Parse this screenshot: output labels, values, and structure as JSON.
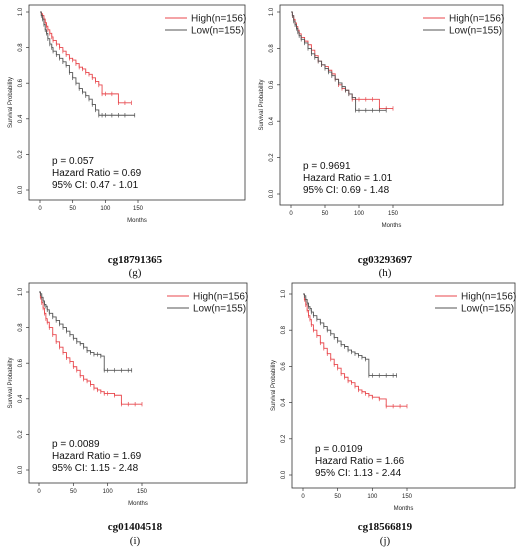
{
  "colors": {
    "high": "#e8474c",
    "low": "#555555",
    "frame": "#333333"
  },
  "chart_data": [
    {
      "type": "line",
      "caption_id": "cg18791365",
      "caption_letter": "(g)",
      "xlabel": "Months",
      "ylabel": "Survival Probability",
      "xlim": [
        0,
        160
      ],
      "ylim": [
        0,
        1
      ],
      "x_ticks": [
        0,
        50,
        100,
        150
      ],
      "y_ticks": [
        0.0,
        0.2,
        0.4,
        0.6,
        0.8,
        1.0
      ],
      "legend": {
        "position": "top-right"
      },
      "stats": [
        "p = 0.057",
        "Hazard Ratio = 0.69",
        "95% CI: 0.47 - 1.01"
      ],
      "series": [
        {
          "name": "High(n=156)",
          "color": "#e8474c",
          "x": [
            0,
            2,
            4,
            6,
            8,
            10,
            12,
            15,
            18,
            20,
            25,
            30,
            35,
            40,
            45,
            50,
            55,
            60,
            65,
            70,
            75,
            80,
            85,
            90,
            95,
            100,
            110,
            120,
            130,
            140
          ],
          "y": [
            1.0,
            0.99,
            0.98,
            0.96,
            0.94,
            0.92,
            0.9,
            0.88,
            0.86,
            0.84,
            0.82,
            0.8,
            0.78,
            0.76,
            0.74,
            0.73,
            0.71,
            0.69,
            0.68,
            0.66,
            0.65,
            0.63,
            0.61,
            0.59,
            0.54,
            0.54,
            0.54,
            0.49,
            0.49,
            0.49
          ]
        },
        {
          "name": "Low(n=155)",
          "color": "#555555",
          "x": [
            0,
            2,
            4,
            6,
            8,
            10,
            12,
            15,
            18,
            20,
            25,
            30,
            35,
            40,
            45,
            50,
            55,
            60,
            65,
            70,
            75,
            80,
            85,
            90,
            95,
            100,
            110,
            120,
            130,
            145
          ],
          "y": [
            1.0,
            0.98,
            0.96,
            0.93,
            0.9,
            0.88,
            0.85,
            0.82,
            0.8,
            0.78,
            0.76,
            0.74,
            0.72,
            0.7,
            0.66,
            0.63,
            0.6,
            0.57,
            0.55,
            0.53,
            0.51,
            0.48,
            0.45,
            0.42,
            0.42,
            0.42,
            0.42,
            0.42,
            0.42,
            0.42
          ]
        }
      ]
    },
    {
      "type": "line",
      "caption_id": "cg03293697",
      "caption_letter": "(h)",
      "xlabel": "Months",
      "ylabel": "Survival Probability",
      "xlim": [
        0,
        160
      ],
      "ylim": [
        0,
        1
      ],
      "x_ticks": [
        0,
        50,
        100,
        150
      ],
      "y_ticks": [
        0.0,
        0.2,
        0.4,
        0.6,
        0.8,
        1.0
      ],
      "legend": {
        "position": "top-right"
      },
      "stats": [
        "p = 0.9691",
        "Hazard Ratio = 1.01",
        "95% CI: 0.69 - 1.48"
      ],
      "series": [
        {
          "name": "High(n=156)",
          "color": "#e8474c",
          "x": [
            0,
            2,
            4,
            6,
            8,
            10,
            12,
            15,
            20,
            25,
            30,
            35,
            40,
            45,
            50,
            55,
            60,
            65,
            70,
            75,
            80,
            85,
            90,
            95,
            100,
            110,
            120,
            130,
            140,
            150
          ],
          "y": [
            1.0,
            0.98,
            0.96,
            0.94,
            0.92,
            0.9,
            0.88,
            0.86,
            0.84,
            0.82,
            0.79,
            0.76,
            0.73,
            0.71,
            0.7,
            0.68,
            0.66,
            0.63,
            0.6,
            0.58,
            0.57,
            0.55,
            0.52,
            0.52,
            0.52,
            0.52,
            0.52,
            0.47,
            0.47,
            0.47
          ]
        },
        {
          "name": "Low(n=155)",
          "color": "#555555",
          "x": [
            0,
            2,
            4,
            6,
            8,
            10,
            12,
            15,
            20,
            25,
            30,
            35,
            40,
            45,
            50,
            55,
            60,
            65,
            70,
            75,
            80,
            85,
            90,
            95,
            100,
            110,
            120,
            130,
            140
          ],
          "y": [
            1.0,
            0.98,
            0.95,
            0.93,
            0.91,
            0.89,
            0.87,
            0.85,
            0.83,
            0.8,
            0.77,
            0.75,
            0.73,
            0.71,
            0.69,
            0.67,
            0.65,
            0.63,
            0.61,
            0.59,
            0.57,
            0.55,
            0.53,
            0.46,
            0.46,
            0.46,
            0.46,
            0.46,
            0.46
          ]
        }
      ]
    },
    {
      "type": "line",
      "caption_id": "cg01404518",
      "caption_letter": "(i)",
      "xlabel": "Months",
      "ylabel": "Survival Probability",
      "xlim": [
        0,
        160
      ],
      "ylim": [
        0,
        1
      ],
      "x_ticks": [
        0,
        50,
        100,
        150
      ],
      "y_ticks": [
        0.0,
        0.2,
        0.4,
        0.6,
        0.8,
        1.0
      ],
      "legend": {
        "position": "top-right"
      },
      "stats": [
        "p = 0.0089",
        "Hazard Ratio = 1.69",
        "95% CI: 1.15 - 2.48"
      ],
      "series": [
        {
          "name": "High(n=156)",
          "color": "#e8474c",
          "x": [
            0,
            2,
            4,
            6,
            8,
            10,
            12,
            15,
            20,
            25,
            30,
            35,
            40,
            45,
            50,
            55,
            60,
            65,
            70,
            75,
            80,
            85,
            90,
            95,
            100,
            110,
            120,
            130,
            140,
            150
          ],
          "y": [
            1.0,
            0.97,
            0.94,
            0.91,
            0.88,
            0.85,
            0.83,
            0.8,
            0.76,
            0.72,
            0.69,
            0.66,
            0.63,
            0.61,
            0.58,
            0.56,
            0.53,
            0.51,
            0.5,
            0.48,
            0.46,
            0.45,
            0.44,
            0.43,
            0.43,
            0.42,
            0.37,
            0.37,
            0.37,
            0.37
          ]
        },
        {
          "name": "Low(n=155)",
          "color": "#555555",
          "x": [
            0,
            2,
            4,
            6,
            8,
            10,
            12,
            15,
            20,
            25,
            30,
            35,
            40,
            45,
            50,
            55,
            60,
            65,
            70,
            75,
            80,
            85,
            90,
            95,
            100,
            110,
            120,
            130,
            135
          ],
          "y": [
            1.0,
            0.99,
            0.97,
            0.95,
            0.93,
            0.92,
            0.9,
            0.88,
            0.86,
            0.84,
            0.82,
            0.8,
            0.78,
            0.76,
            0.74,
            0.72,
            0.71,
            0.69,
            0.67,
            0.66,
            0.65,
            0.65,
            0.64,
            0.56,
            0.56,
            0.56,
            0.56,
            0.56,
            0.56
          ]
        }
      ]
    },
    {
      "type": "line",
      "caption_id": "cg18566819",
      "caption_letter": "(j)",
      "xlabel": "Months",
      "ylabel": "Survival Probability",
      "xlim": [
        0,
        160
      ],
      "ylim": [
        0,
        1
      ],
      "x_ticks": [
        0,
        50,
        100,
        150
      ],
      "y_ticks": [
        0.0,
        0.2,
        0.4,
        0.6,
        0.8,
        1.0
      ],
      "legend": {
        "position": "top-right"
      },
      "stats": [
        "p = 0.0109",
        "Hazard Ratio = 1.66",
        "95% CI: 1.13 - 2.44"
      ],
      "series": [
        {
          "name": "High(n=156)",
          "color": "#e8474c",
          "x": [
            0,
            2,
            4,
            6,
            8,
            10,
            12,
            15,
            20,
            25,
            30,
            35,
            40,
            45,
            50,
            55,
            60,
            65,
            70,
            75,
            80,
            85,
            90,
            95,
            100,
            110,
            120,
            130,
            140,
            150
          ],
          "y": [
            1.0,
            0.97,
            0.94,
            0.91,
            0.88,
            0.86,
            0.83,
            0.8,
            0.77,
            0.73,
            0.7,
            0.67,
            0.64,
            0.61,
            0.59,
            0.56,
            0.54,
            0.52,
            0.51,
            0.49,
            0.47,
            0.46,
            0.45,
            0.44,
            0.43,
            0.42,
            0.38,
            0.38,
            0.38,
            0.38
          ]
        },
        {
          "name": "Low(n=155)",
          "color": "#555555",
          "x": [
            0,
            2,
            4,
            6,
            8,
            10,
            12,
            15,
            20,
            25,
            30,
            35,
            40,
            45,
            50,
            55,
            60,
            65,
            70,
            75,
            80,
            85,
            90,
            95,
            100,
            110,
            120,
            130,
            135
          ],
          "y": [
            1.0,
            0.99,
            0.97,
            0.95,
            0.93,
            0.92,
            0.9,
            0.88,
            0.86,
            0.84,
            0.82,
            0.8,
            0.78,
            0.76,
            0.74,
            0.72,
            0.71,
            0.69,
            0.68,
            0.67,
            0.66,
            0.65,
            0.64,
            0.55,
            0.55,
            0.55,
            0.55,
            0.55,
            0.55
          ]
        }
      ]
    }
  ]
}
